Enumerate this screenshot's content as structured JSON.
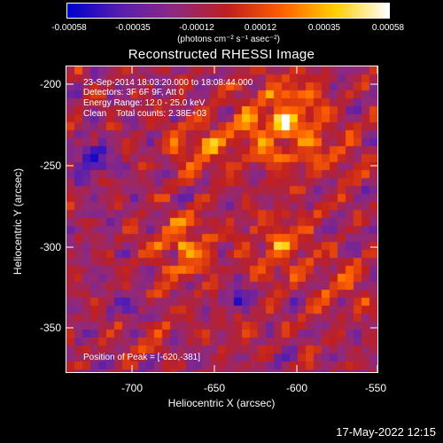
{
  "colorbar": {
    "ticks": [
      "-0.00058",
      "-0.00035",
      "-0.00012",
      "0.00012",
      "0.00035",
      "0.00058"
    ],
    "units": "(photons cm⁻² s⁻¹ asec⁻²)",
    "colors": [
      "#0000cc",
      "#5a1fb0",
      "#8f2a80",
      "#c02020",
      "#ff6000",
      "#ffd000",
      "#ffffff"
    ]
  },
  "title": "Reconstructed RHESSI Image",
  "annotations": {
    "time_range": "23-Sep-2014 18:03:20.000 to 18:08:44.000",
    "detectors": "Detectors: 3F 6F 9F, Att 0",
    "energy": "Energy Range: 12.0 - 25.0 keV",
    "method": "Clean    Total counts: 2.38E+03",
    "peak": "Position of Peak = [-620,-381]"
  },
  "axes": {
    "x_label": "Heliocentric X (arcsec)",
    "y_label": "Heliocentric Y (arcsec)",
    "x_ticks": [
      "-700",
      "-650",
      "-600",
      "-550"
    ],
    "y_ticks": [
      "-200",
      "-250",
      "-300",
      "-350"
    ]
  },
  "timestamp": "17-May-2022 12:15"
}
